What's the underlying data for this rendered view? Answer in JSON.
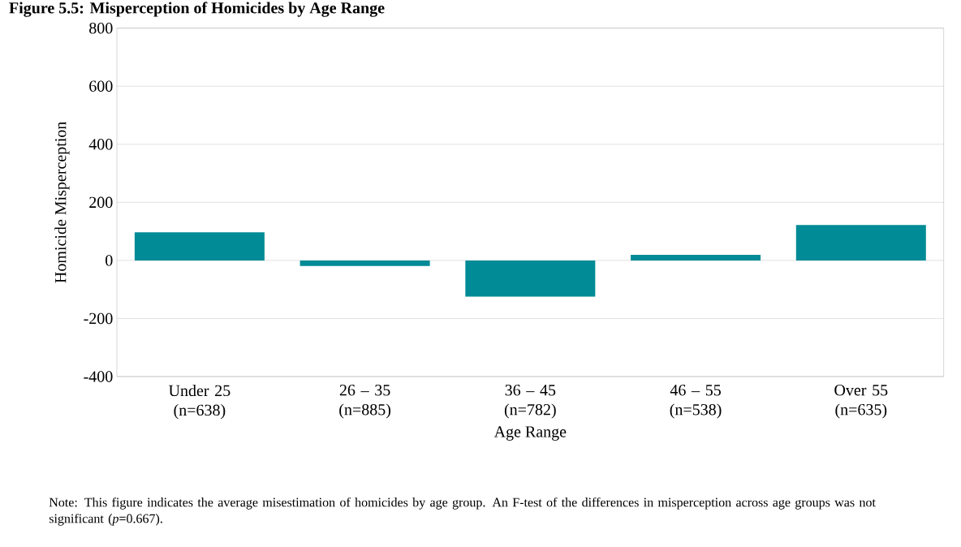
{
  "chart_data": {
    "type": "bar",
    "title": "Figure 5.5: Misperception of Homicides by Age Range",
    "xlabel": "Age Range",
    "ylabel": "Homicide Misperception",
    "categories": [
      "Under 25 (n=638)",
      "26 – 35 (n=885)",
      "36 – 45 (n=782)",
      "46 – 55 (n=538)",
      "Over 55 (n=635)"
    ],
    "values": [
      97,
      -19,
      -125,
      19,
      122
    ],
    "color": "#008b96",
    "ylim": [
      -400,
      800
    ],
    "yticks": [
      -400,
      -200,
      0,
      200,
      400,
      600,
      800
    ],
    "grid": "y",
    "annotations": [
      "Note: This figure indicates the average misestimation of homicides by age group. An F-test of the differences in misperception across age groups was not significant (*p*=0.667)."
    ]
  }
}
